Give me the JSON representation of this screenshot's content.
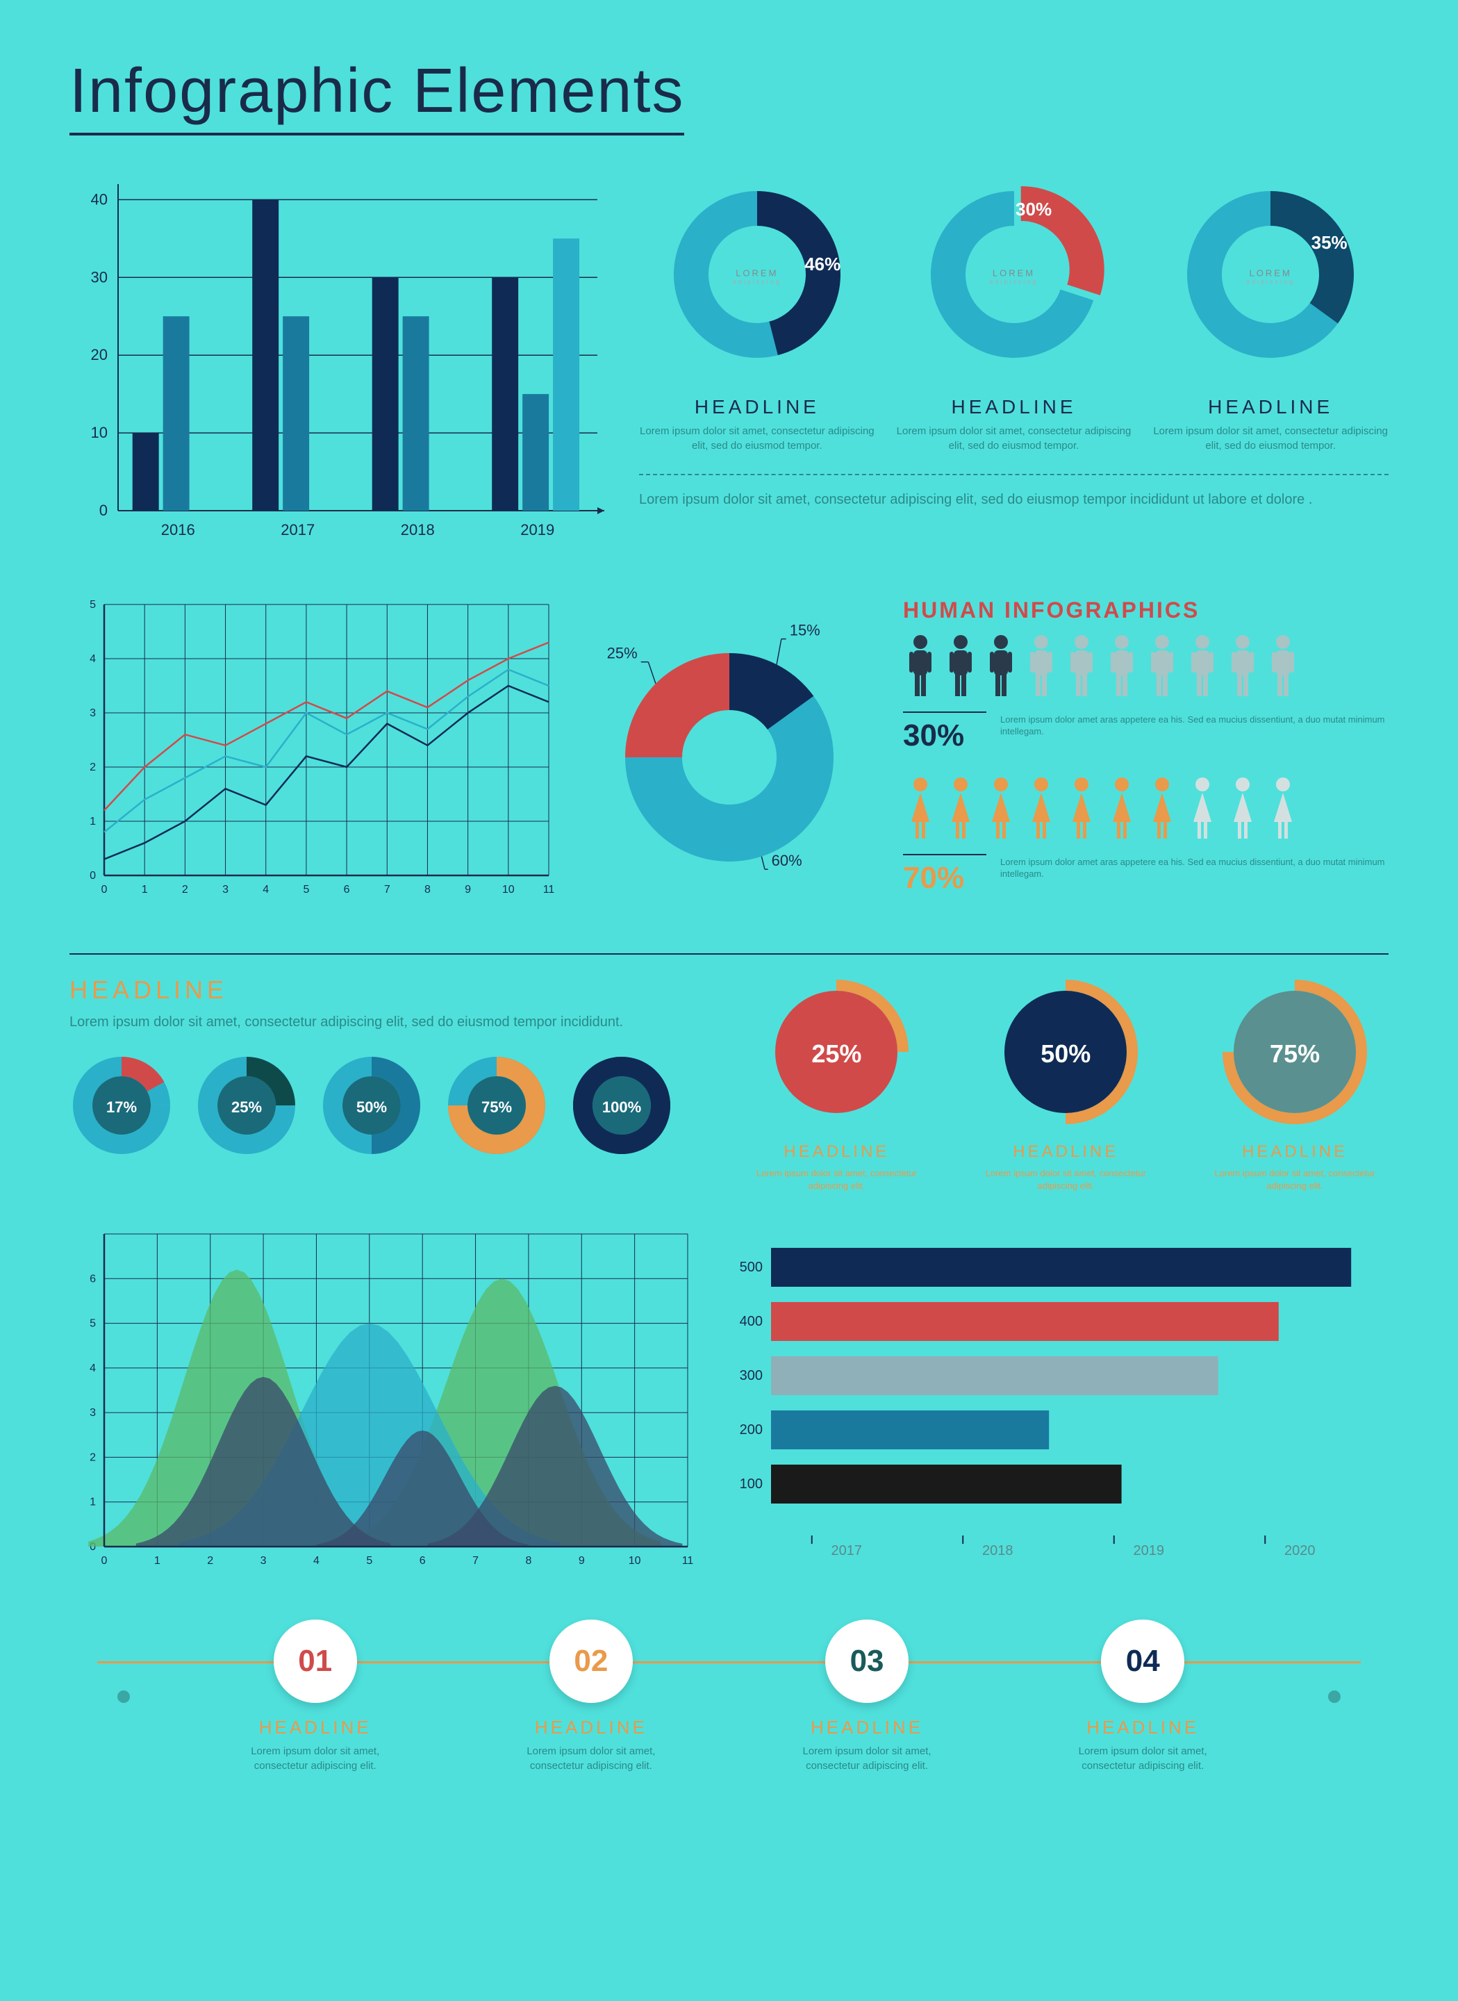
{
  "title": "Infographic Elements",
  "bar_chart": {
    "type": "bar",
    "categories": [
      "2016",
      "2017",
      "2018",
      "2019"
    ],
    "series": [
      {
        "values": [
          10,
          40,
          30,
          30
        ],
        "color": "#0f2b55"
      },
      {
        "values": [
          25,
          25,
          25,
          15
        ],
        "color": "#1a7a9e"
      },
      {
        "values": [
          null,
          null,
          null,
          35
        ],
        "color": "#2bb0c9"
      }
    ],
    "yticks": [
      0,
      10,
      20,
      30,
      40
    ],
    "ylim": [
      0,
      42
    ],
    "bar_width": 0.28,
    "grid_color": "#1a2b4a",
    "label_fontsize": 22
  },
  "donut_row": [
    {
      "pct": 46,
      "slice_color": "#0f2b55",
      "ring_color": "#2bb0c9",
      "center": "LOREM",
      "headline": "HEADLINE",
      "caption": "Lorem ipsum dolor sit amet, consectetur adipiscing elit, sed do eiusmod tempor."
    },
    {
      "pct": 30,
      "slice_color": "#d14a4a",
      "ring_color": "#2bb0c9",
      "center": "LOREM",
      "headline": "HEADLINE",
      "caption": "Lorem ipsum dolor sit amet, consectetur adipiscing elit, sed do eiusmod tempor.",
      "exploded": true
    },
    {
      "pct": 35,
      "slice_color": "#0f4a6a",
      "ring_color": "#2bb0c9",
      "center": "LOREM",
      "headline": "HEADLINE",
      "caption": "Lorem ipsum dolor sit amet, consectetur adipiscing elit, sed do eiusmod tempor."
    }
  ],
  "lorem_block": "Lorem ipsum dolor sit amet, consectetur adipiscing elit, sed do eiusmop tempor incididunt ut labore et dolore .",
  "line_chart": {
    "type": "line",
    "xlim": [
      0,
      11
    ],
    "ylim": [
      0,
      5
    ],
    "xticks": [
      0,
      1,
      2,
      3,
      4,
      5,
      6,
      7,
      8,
      9,
      10,
      11
    ],
    "yticks": [
      0,
      1,
      2,
      3,
      4,
      5
    ],
    "grid_color": "#1a2b4a",
    "series": [
      {
        "color": "#d14a4a",
        "points": [
          [
            0,
            1.2
          ],
          [
            1,
            2.0
          ],
          [
            2,
            2.6
          ],
          [
            3,
            2.4
          ],
          [
            4,
            2.8
          ],
          [
            5,
            3.2
          ],
          [
            6,
            2.9
          ],
          [
            7,
            3.4
          ],
          [
            8,
            3.1
          ],
          [
            9,
            3.6
          ],
          [
            10,
            4.0
          ],
          [
            11,
            4.3
          ]
        ]
      },
      {
        "color": "#2bb0c9",
        "points": [
          [
            0,
            0.8
          ],
          [
            1,
            1.4
          ],
          [
            2,
            1.8
          ],
          [
            3,
            2.2
          ],
          [
            4,
            2.0
          ],
          [
            5,
            3.0
          ],
          [
            6,
            2.6
          ],
          [
            7,
            3.0
          ],
          [
            8,
            2.7
          ],
          [
            9,
            3.3
          ],
          [
            10,
            3.8
          ],
          [
            11,
            3.5
          ]
        ]
      },
      {
        "color": "#0f2b55",
        "points": [
          [
            0,
            0.3
          ],
          [
            1,
            0.6
          ],
          [
            2,
            1.0
          ],
          [
            3,
            1.6
          ],
          [
            4,
            1.3
          ],
          [
            5,
            2.2
          ],
          [
            6,
            2.0
          ],
          [
            7,
            2.8
          ],
          [
            8,
            2.4
          ],
          [
            9,
            3.0
          ],
          [
            10,
            3.5
          ],
          [
            11,
            3.2
          ]
        ]
      }
    ]
  },
  "pie_center": {
    "type": "donut",
    "slices": [
      {
        "pct": 15,
        "color": "#0f2b55",
        "label": "15%"
      },
      {
        "pct": 60,
        "color": "#2bb0c9",
        "label": "60%"
      },
      {
        "pct": 25,
        "color": "#d14a4a",
        "label": "25%"
      }
    ],
    "inner_radius": 0.45
  },
  "human": {
    "title": "HUMAN INFOGRAPHICS",
    "rows": [
      {
        "count": 10,
        "filled": 3,
        "pct": "30%",
        "fill_color": "#2a3a4a",
        "empty_color": "#a8c4c4",
        "desc": "Lorem ipsum dolor amet aras appetere ea his. Sed ea mucius dissentiunt, a duo mutat minimum intellegam."
      },
      {
        "count": 10,
        "filled": 7,
        "pct": "70%",
        "fill_color": "#e99a4a",
        "empty_color": "#d4e0e0",
        "desc": "Lorem ipsum dolor amet aras appetere ea his. Sed ea mucius dissentiunt, a duo mutat minimum intellegam."
      }
    ]
  },
  "section2": {
    "headline": "HEADLINE",
    "caption": "Lorem ipsum dolor sit amet, consectetur adipiscing elit, sed do eiusmod tempor incididunt."
  },
  "mini_donuts": [
    {
      "pct": 17,
      "ring": "#2bb0c9",
      "slice": "#d14a4a"
    },
    {
      "pct": 25,
      "ring": "#2bb0c9",
      "slice": "#0f4a4a"
    },
    {
      "pct": 50,
      "ring": "#2bb0c9",
      "slice": "#1a7a9e"
    },
    {
      "pct": 75,
      "ring": "#2bb0c9",
      "slice": "#e99a4a"
    },
    {
      "pct": 100,
      "ring": "#0f2b55",
      "slice": "#0f2b55"
    }
  ],
  "circle_badges": [
    {
      "pct": "25%",
      "fill": "#d14a4a",
      "arc": "#e99a4a",
      "headline": "HEADLINE",
      "caption": "Lorem ipsum dolor sit amet, consectetur adipiscing elit."
    },
    {
      "pct": "50%",
      "fill": "#0f2b55",
      "arc": "#e99a4a",
      "headline": "HEADLINE",
      "caption": "Lorem ipsum dolor sit amet, consectetur adipiscing elit."
    },
    {
      "pct": "75%",
      "fill": "#5a9090",
      "arc": "#e99a4a",
      "headline": "HEADLINE",
      "caption": "Lorem ipsum dolor sit amet, consectetur adipiscing elit."
    }
  ],
  "area_chart": {
    "type": "area",
    "xlim": [
      0,
      11
    ],
    "ylim": [
      0,
      7
    ],
    "xticks": [
      0,
      1,
      2,
      3,
      4,
      5,
      6,
      7,
      8,
      9,
      10,
      11
    ],
    "yticks": [
      0,
      1,
      2,
      3,
      4,
      5,
      6
    ],
    "grid_color": "#1a2b4a",
    "humps": [
      {
        "color": "#5abb6a",
        "opacity": 0.75,
        "peaks": [
          {
            "x": 2.5,
            "h": 6.2,
            "w": 1.4
          },
          {
            "x": 7.5,
            "h": 6.0,
            "w": 1.5
          }
        ]
      },
      {
        "color": "#2bb0c9",
        "opacity": 0.75,
        "peaks": [
          {
            "x": 5,
            "h": 5.0,
            "w": 1.8
          }
        ]
      },
      {
        "color": "#3a4a6a",
        "opacity": 0.75,
        "peaks": [
          {
            "x": 3,
            "h": 3.8,
            "w": 1.2
          },
          {
            "x": 6,
            "h": 2.6,
            "w": 1.0
          },
          {
            "x": 8.5,
            "h": 3.6,
            "w": 1.2
          }
        ]
      }
    ]
  },
  "hbar_chart": {
    "type": "hbar",
    "xticks": [
      "2017",
      "2018",
      "2019",
      "2020"
    ],
    "yticks": [
      100,
      200,
      300,
      400,
      500
    ],
    "bars": [
      {
        "value": 480,
        "color": "#0f2b55"
      },
      {
        "value": 420,
        "color": "#d14a4a"
      },
      {
        "value": 370,
        "color": "#8fb0b8"
      },
      {
        "value": 230,
        "color": "#1a7a9e"
      },
      {
        "value": 290,
        "color": "#1a1a1a"
      }
    ],
    "xlim": [
      0,
      500
    ]
  },
  "timeline": [
    {
      "num": "01",
      "color": "#d14a4a",
      "headline": "HEADLINE",
      "caption": "Lorem ipsum dolor sit amet, consectetur adipiscing elit."
    },
    {
      "num": "02",
      "color": "#e99a4a",
      "headline": "HEADLINE",
      "caption": "Lorem ipsum dolor sit amet, consectetur adipiscing elit."
    },
    {
      "num": "03",
      "color": "#1a5a5a",
      "headline": "HEADLINE",
      "caption": "Lorem ipsum dolor sit amet, consectetur adipiscing elit."
    },
    {
      "num": "04",
      "color": "#0f2b55",
      "headline": "HEADLINE",
      "caption": "Lorem ipsum dolor sit amet, consectetur adipiscing elit."
    }
  ]
}
